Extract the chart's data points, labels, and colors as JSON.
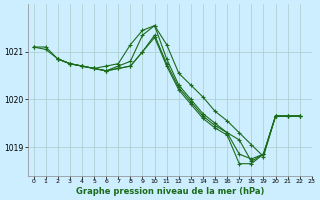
{
  "bg_color": "#cceeff",
  "grid_color": "#aacccc",
  "line_color": "#1a6b1a",
  "title": "Graphe pression niveau de la mer (hPa)",
  "xlim": [
    -0.5,
    23
  ],
  "ylim": [
    1018.4,
    1022.0
  ],
  "yticks": [
    1019,
    1020,
    1021
  ],
  "xticks": [
    0,
    1,
    2,
    3,
    4,
    5,
    6,
    7,
    8,
    9,
    10,
    11,
    12,
    13,
    14,
    15,
    16,
    17,
    18,
    19,
    20,
    21,
    22,
    23
  ],
  "series": [
    {
      "x": [
        0,
        1,
        2,
        3,
        4,
        5,
        6,
        7,
        8,
        9,
        10,
        11,
        12,
        13,
        14,
        15,
        16,
        17,
        18,
        19,
        20,
        21,
        22
      ],
      "y": [
        1021.1,
        1021.1,
        1020.85,
        1020.75,
        1020.7,
        1020.65,
        1020.6,
        1020.7,
        1020.8,
        1021.35,
        1021.55,
        1021.15,
        1020.55,
        1020.3,
        1020.05,
        1019.75,
        1019.55,
        1019.3,
        1019.05,
        1018.8,
        1019.65,
        1019.65,
        1019.65
      ]
    },
    {
      "x": [
        0,
        1,
        2,
        3,
        4,
        5,
        6,
        7,
        8,
        9,
        10,
        11,
        12,
        13,
        14,
        15,
        16,
        17,
        18,
        19,
        20,
        21,
        22
      ],
      "y": [
        1021.1,
        1021.05,
        1020.85,
        1020.75,
        1020.7,
        1020.65,
        1020.7,
        1020.75,
        1021.15,
        1021.45,
        1021.55,
        1020.85,
        1020.3,
        1020.0,
        1019.7,
        1019.5,
        1019.3,
        1018.85,
        1018.75,
        1018.85,
        1019.65,
        1019.65,
        1019.65
      ]
    },
    {
      "x": [
        2,
        3,
        4,
        5,
        6,
        7,
        8,
        9,
        10,
        11,
        12,
        13,
        14,
        15,
        16,
        17,
        18,
        19,
        20,
        21,
        22
      ],
      "y": [
        1020.85,
        1020.75,
        1020.7,
        1020.65,
        1020.6,
        1020.65,
        1020.7,
        1021.0,
        1021.35,
        1020.75,
        1020.25,
        1019.95,
        1019.65,
        1019.45,
        1019.3,
        1019.15,
        1018.7,
        1018.85,
        1019.65,
        1019.65,
        1019.65
      ]
    },
    {
      "x": [
        2,
        3,
        4,
        5,
        6,
        7,
        8,
        9,
        10,
        11,
        12,
        13,
        14,
        15,
        16,
        17,
        18,
        19,
        20,
        21,
        22
      ],
      "y": [
        1020.85,
        1020.75,
        1020.7,
        1020.65,
        1020.6,
        1020.65,
        1020.7,
        1021.0,
        1021.3,
        1020.7,
        1020.2,
        1019.9,
        1019.6,
        1019.4,
        1019.25,
        1018.65,
        1018.65,
        1018.85,
        1019.65,
        1019.65,
        1019.65
      ]
    }
  ]
}
